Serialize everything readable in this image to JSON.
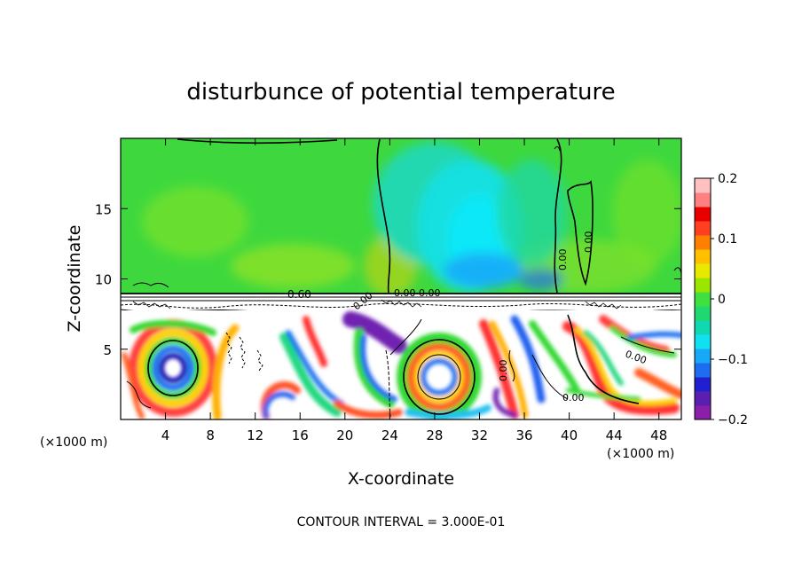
{
  "chart_data": {
    "type": "heatmap",
    "title": "disturbunce of potential temperature",
    "xlabel": "X-coordinate",
    "ylabel": "Z-coordinate",
    "x_unit_left": "(×1000 m)",
    "x_unit_right": "(×1000 m)",
    "footer": "CONTOUR INTERVAL = 3.000E-01",
    "xlim": [
      0,
      50
    ],
    "ylim": [
      0,
      20
    ],
    "x_ticks": [
      4,
      8,
      12,
      16,
      20,
      24,
      28,
      32,
      36,
      40,
      44,
      48
    ],
    "y_ticks": [
      5,
      10,
      15
    ],
    "colorbar": {
      "range": [
        -0.2,
        0.2
      ],
      "ticks": [
        0.2,
        0.1,
        0,
        -0.1,
        -0.2
      ],
      "tick_labels": [
        "0.2",
        "0.1",
        "0",
        "−0.1",
        "−0.2"
      ],
      "colors": [
        "#8a1fa8",
        "#5a1fb0",
        "#2020d0",
        "#1e6cf0",
        "#18a8f8",
        "#10e0f0",
        "#10d8b0",
        "#20d870",
        "#40e040",
        "#9be600",
        "#e8e800",
        "#ffc000",
        "#ff8000",
        "#ff4020",
        "#e80000",
        "#ff8080",
        "#ffc0c0"
      ]
    },
    "contour_labels": [
      "0.60",
      "0.00",
      "0.00",
      "0.00",
      "0.00",
      "0.00",
      "0.00",
      "0.00",
      "0.00"
    ],
    "contour_interval": 0.3
  }
}
